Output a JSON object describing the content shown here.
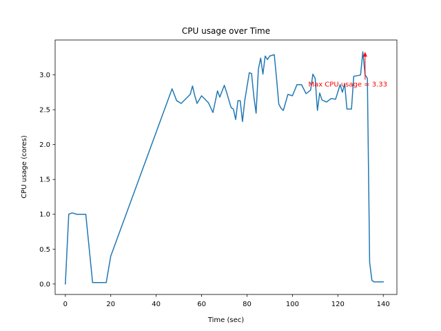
{
  "chart_data": {
    "type": "line",
    "title": "CPU usage over Time",
    "xlabel": "Time (sec)",
    "ylabel": "CPU usage (cores)",
    "xlim": [
      -4.5,
      146
    ],
    "ylim": [
      -0.15,
      3.5
    ],
    "xticks": [
      0,
      20,
      40,
      60,
      80,
      100,
      120,
      140
    ],
    "yticks": [
      0.0,
      0.5,
      1.0,
      1.5,
      2.0,
      2.5,
      3.0
    ],
    "xtick_labels": [
      "0",
      "20",
      "40",
      "60",
      "80",
      "100",
      "120",
      "140"
    ],
    "ytick_labels": [
      "0.0",
      "0.5",
      "1.0",
      "1.5",
      "2.0",
      "2.5",
      "3.0"
    ],
    "grid": false,
    "legend": "none",
    "line_color": "#1f77b4",
    "series": [
      {
        "x": [
          0,
          1.5,
          3,
          5,
          9,
          12,
          15,
          18,
          20,
          47,
          49,
          51,
          55,
          56,
          57,
          58,
          60,
          63,
          65,
          67,
          68,
          70,
          71,
          73,
          74,
          75,
          76,
          77,
          78,
          79,
          81,
          82,
          83,
          84,
          85,
          86,
          87,
          88,
          89,
          90,
          91,
          92,
          93,
          94,
          95,
          96,
          98,
          100,
          102,
          104,
          106,
          108,
          109,
          110,
          111,
          112,
          113,
          115,
          117,
          119,
          121,
          122,
          123,
          124,
          125,
          126,
          127,
          129,
          130,
          131,
          132,
          133,
          134,
          135,
          136,
          138,
          140
        ],
        "y": [
          0.0,
          1.0,
          1.02,
          1.0,
          1.0,
          0.02,
          0.02,
          0.02,
          0.4,
          2.8,
          2.63,
          2.59,
          2.72,
          2.84,
          2.7,
          2.59,
          2.7,
          2.6,
          2.46,
          2.77,
          2.68,
          2.85,
          2.75,
          2.53,
          2.51,
          2.36,
          2.63,
          2.63,
          2.33,
          2.63,
          3.03,
          3.02,
          2.69,
          2.45,
          3.08,
          3.24,
          3.01,
          3.27,
          3.22,
          3.27,
          3.28,
          3.29,
          2.95,
          2.58,
          2.52,
          2.49,
          2.72,
          2.7,
          2.86,
          2.86,
          2.73,
          2.78,
          3.01,
          2.95,
          2.49,
          2.74,
          2.64,
          2.61,
          2.66,
          2.65,
          2.86,
          2.75,
          2.87,
          2.51,
          2.51,
          2.51,
          2.98,
          2.99,
          3.0,
          3.33,
          3.0,
          2.95,
          0.31,
          0.05,
          0.03,
          0.03,
          0.03
        ]
      }
    ],
    "annotation": {
      "text": "Max CPU usage = 3.33",
      "point": [
        132,
        3.33
      ],
      "text_at": [
        107,
        2.87
      ],
      "color": "#ff0000"
    }
  }
}
